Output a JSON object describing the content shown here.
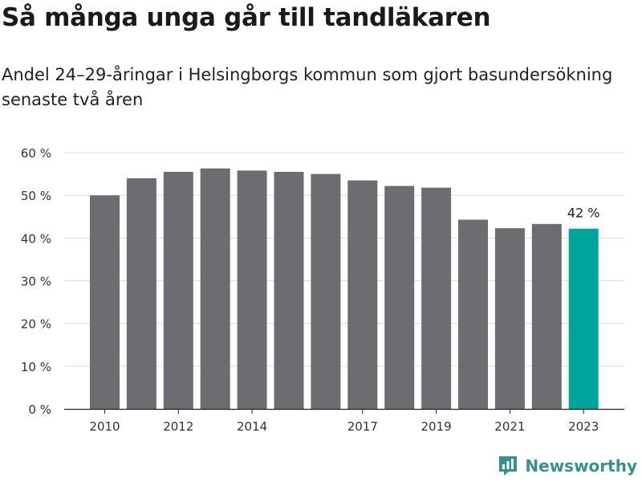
{
  "title": "Så många unga går till tandläkaren",
  "subtitle": "Andel 24–29-åringar i Helsingborgs kommun som gjort basundersökning senaste två åren",
  "brand": {
    "name": "Newsworthy",
    "icon": "newsworthy-logo-icon",
    "color": "#3a8f8f"
  },
  "chart_data": {
    "type": "bar",
    "title": "Så många unga går till tandläkaren",
    "subtitle": "Andel 24–29-åringar i Helsingborgs kommun som gjort basundersökning senaste två åren",
    "categories": [
      2010,
      2011,
      2012,
      2013,
      2014,
      2015,
      2016,
      2017,
      2018,
      2019,
      2020,
      2021,
      2022,
      2023
    ],
    "values": [
      50,
      54,
      55.5,
      56.3,
      55.8,
      55.5,
      55,
      53.5,
      52.2,
      51.8,
      44.3,
      42.3,
      43.3,
      42.2
    ],
    "x_tick_labels": [
      "2010",
      "2012",
      "2014",
      "2017",
      "2019",
      "2021",
      "2023"
    ],
    "y_ticks": [
      0,
      10,
      20,
      30,
      40,
      50,
      60
    ],
    "y_tick_labels": [
      "0 %",
      "10 %",
      "20 %",
      "30 %",
      "40 %",
      "50 %",
      "60 %"
    ],
    "ylim": [
      0,
      60
    ],
    "xlabel": "",
    "ylabel": "",
    "grid": true,
    "annotation": {
      "category": 2023,
      "text": "42 %"
    },
    "bar_color": "#6d6c71",
    "highlight_color": "#00a49a",
    "highlight_category": 2023
  }
}
